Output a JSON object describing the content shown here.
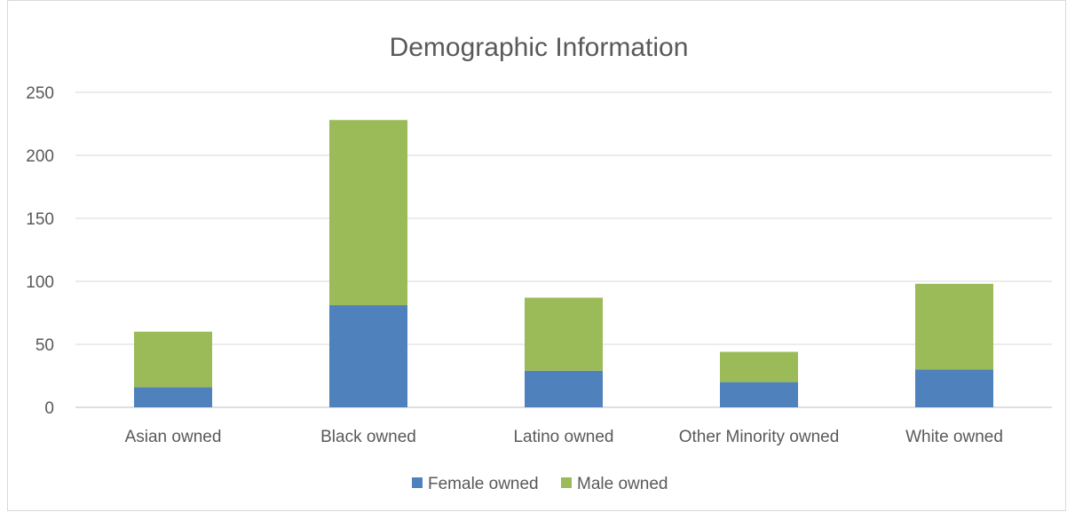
{
  "chart_data": {
    "type": "bar",
    "stacked": true,
    "title": "Demographic Information",
    "xlabel": "",
    "ylabel": "",
    "categories": [
      "Asian owned",
      "Black owned",
      "Latino owned",
      "Other Minority owned",
      "White owned"
    ],
    "series": [
      {
        "name": "Female owned",
        "color": "#4f81bd",
        "values": [
          16,
          81,
          29,
          20,
          30
        ]
      },
      {
        "name": "Male owned",
        "color": "#9bbb59",
        "values": [
          44,
          147,
          58,
          24,
          68
        ]
      }
    ],
    "ylim": [
      0,
      250
    ],
    "yticks": [
      "0",
      "50",
      "100",
      "150",
      "200",
      "250"
    ],
    "grid": true,
    "legend_position": "bottom"
  }
}
